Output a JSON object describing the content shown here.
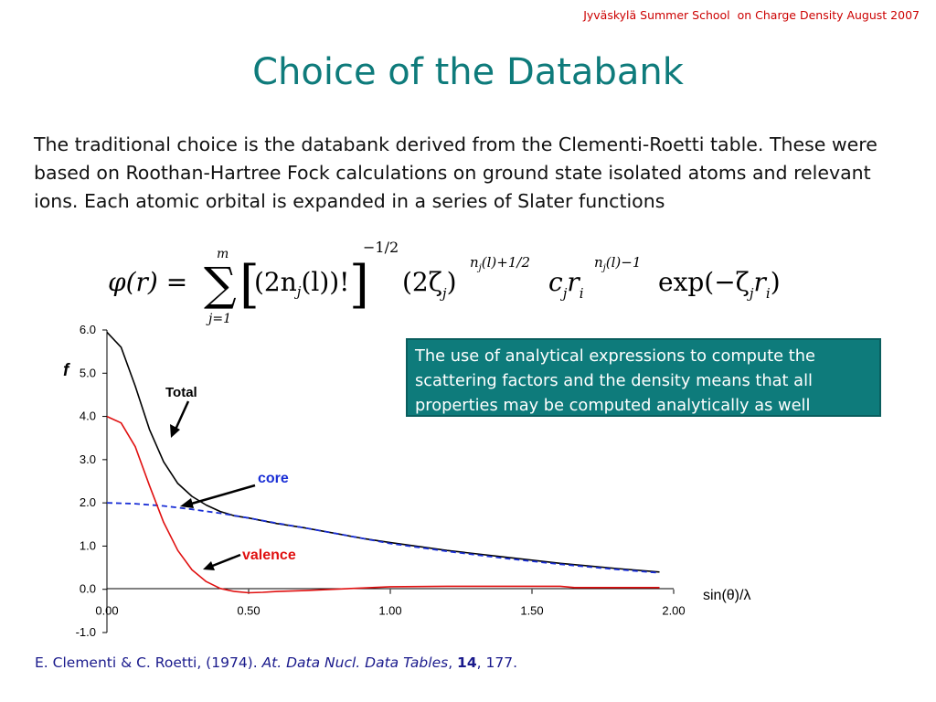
{
  "header_note": "Jyväskylä Summer School  on Charge Density August 2007",
  "title": "Choice of the Databank",
  "body_text": "The traditional choice is the databank derived from the Clementi-Roetti table. These were based on Roothan-Hartree Fock calculations on ground state isolated atoms and relevant ions. Each atomic orbital is expanded in a series of Slater functions",
  "formula": {
    "lhs": "φ(r) =",
    "sum_top": "m",
    "sum_bottom": "j=1",
    "factor": "(2n",
    "factor_sub": "j",
    "factor_tail": "(l))!",
    "power": "−1/2",
    "term2": "(2ζ",
    "term2_sub": "j",
    "term2_close": ")",
    "term2_exp_n": "n",
    "term2_exp_sub": "j",
    "term2_exp_tail": "(l)+1/2",
    "coef": "c",
    "coef_sub": "j",
    "rvar": "r",
    "rvar_sub": "i",
    "r_exp_n": "n",
    "r_exp_sub": "j",
    "r_exp_tail": "(l)−1",
    "exp_part": "exp(−ζ",
    "exp_sub_j": "j",
    "exp_r": "r",
    "exp_sub_i": "i",
    "exp_close": ")"
  },
  "chart_data": {
    "type": "line",
    "ylabel": "f",
    "xlabel": "sin(θ)/λ",
    "xlim": [
      0,
      2
    ],
    "ylim": [
      -1,
      6
    ],
    "x_ticks": [
      "0.00",
      "0.50",
      "1.00",
      "1.50",
      "2.00"
    ],
    "y_ticks": [
      "-1.0",
      "0.0",
      "1.0",
      "2.0",
      "3.0",
      "4.0",
      "5.0",
      "6.0"
    ],
    "grid": false,
    "series": [
      {
        "name": "Total",
        "color": "#000000",
        "style": "solid",
        "x": [
          0.0,
          0.05,
          0.1,
          0.15,
          0.2,
          0.25,
          0.3,
          0.35,
          0.4,
          0.45,
          0.5,
          0.6,
          0.7,
          0.8,
          0.9,
          1.0,
          1.2,
          1.4,
          1.6,
          1.8,
          1.95
        ],
        "y": [
          5.95,
          5.6,
          4.7,
          3.7,
          2.95,
          2.45,
          2.15,
          1.95,
          1.8,
          1.7,
          1.65,
          1.52,
          1.42,
          1.3,
          1.18,
          1.08,
          0.9,
          0.75,
          0.6,
          0.48,
          0.4
        ]
      },
      {
        "name": "core",
        "color": "#1a2fd6",
        "style": "dashed",
        "x": [
          0.0,
          0.1,
          0.2,
          0.3,
          0.4,
          0.5,
          0.6,
          0.7,
          0.8,
          0.9,
          1.0,
          1.2,
          1.4,
          1.6,
          1.8,
          1.95
        ],
        "y": [
          2.0,
          1.98,
          1.93,
          1.85,
          1.76,
          1.65,
          1.53,
          1.42,
          1.3,
          1.18,
          1.06,
          0.88,
          0.72,
          0.58,
          0.46,
          0.38
        ]
      },
      {
        "name": "valence",
        "color": "#e01010",
        "style": "solid",
        "x": [
          0.0,
          0.05,
          0.1,
          0.15,
          0.2,
          0.25,
          0.3,
          0.35,
          0.4,
          0.45,
          0.5,
          0.55,
          0.6,
          0.7,
          0.8,
          0.9,
          1.0,
          1.2,
          1.4,
          1.6,
          1.65,
          1.8,
          1.95
        ],
        "y": [
          4.0,
          3.85,
          3.3,
          2.4,
          1.55,
          0.9,
          0.45,
          0.18,
          0.02,
          -0.05,
          -0.08,
          -0.07,
          -0.05,
          -0.03,
          0.0,
          0.03,
          0.06,
          0.07,
          0.07,
          0.07,
          0.04,
          0.04,
          0.04
        ]
      }
    ],
    "annotations": [
      {
        "text": "Total",
        "color": "#000000"
      },
      {
        "text": "core",
        "color": "#1a2fd6"
      },
      {
        "text": "valence",
        "color": "#e01010"
      }
    ]
  },
  "callout": "The use of analytical expressions to compute the scattering factors and the density means that all properties may be computed analytically as well",
  "reference": {
    "authors": "E. Clementi & C. Roetti, (1974). ",
    "journal": "At. Data Nucl. Data Tables",
    "sep1": ", ",
    "volume": "14",
    "pages": ", 177."
  }
}
